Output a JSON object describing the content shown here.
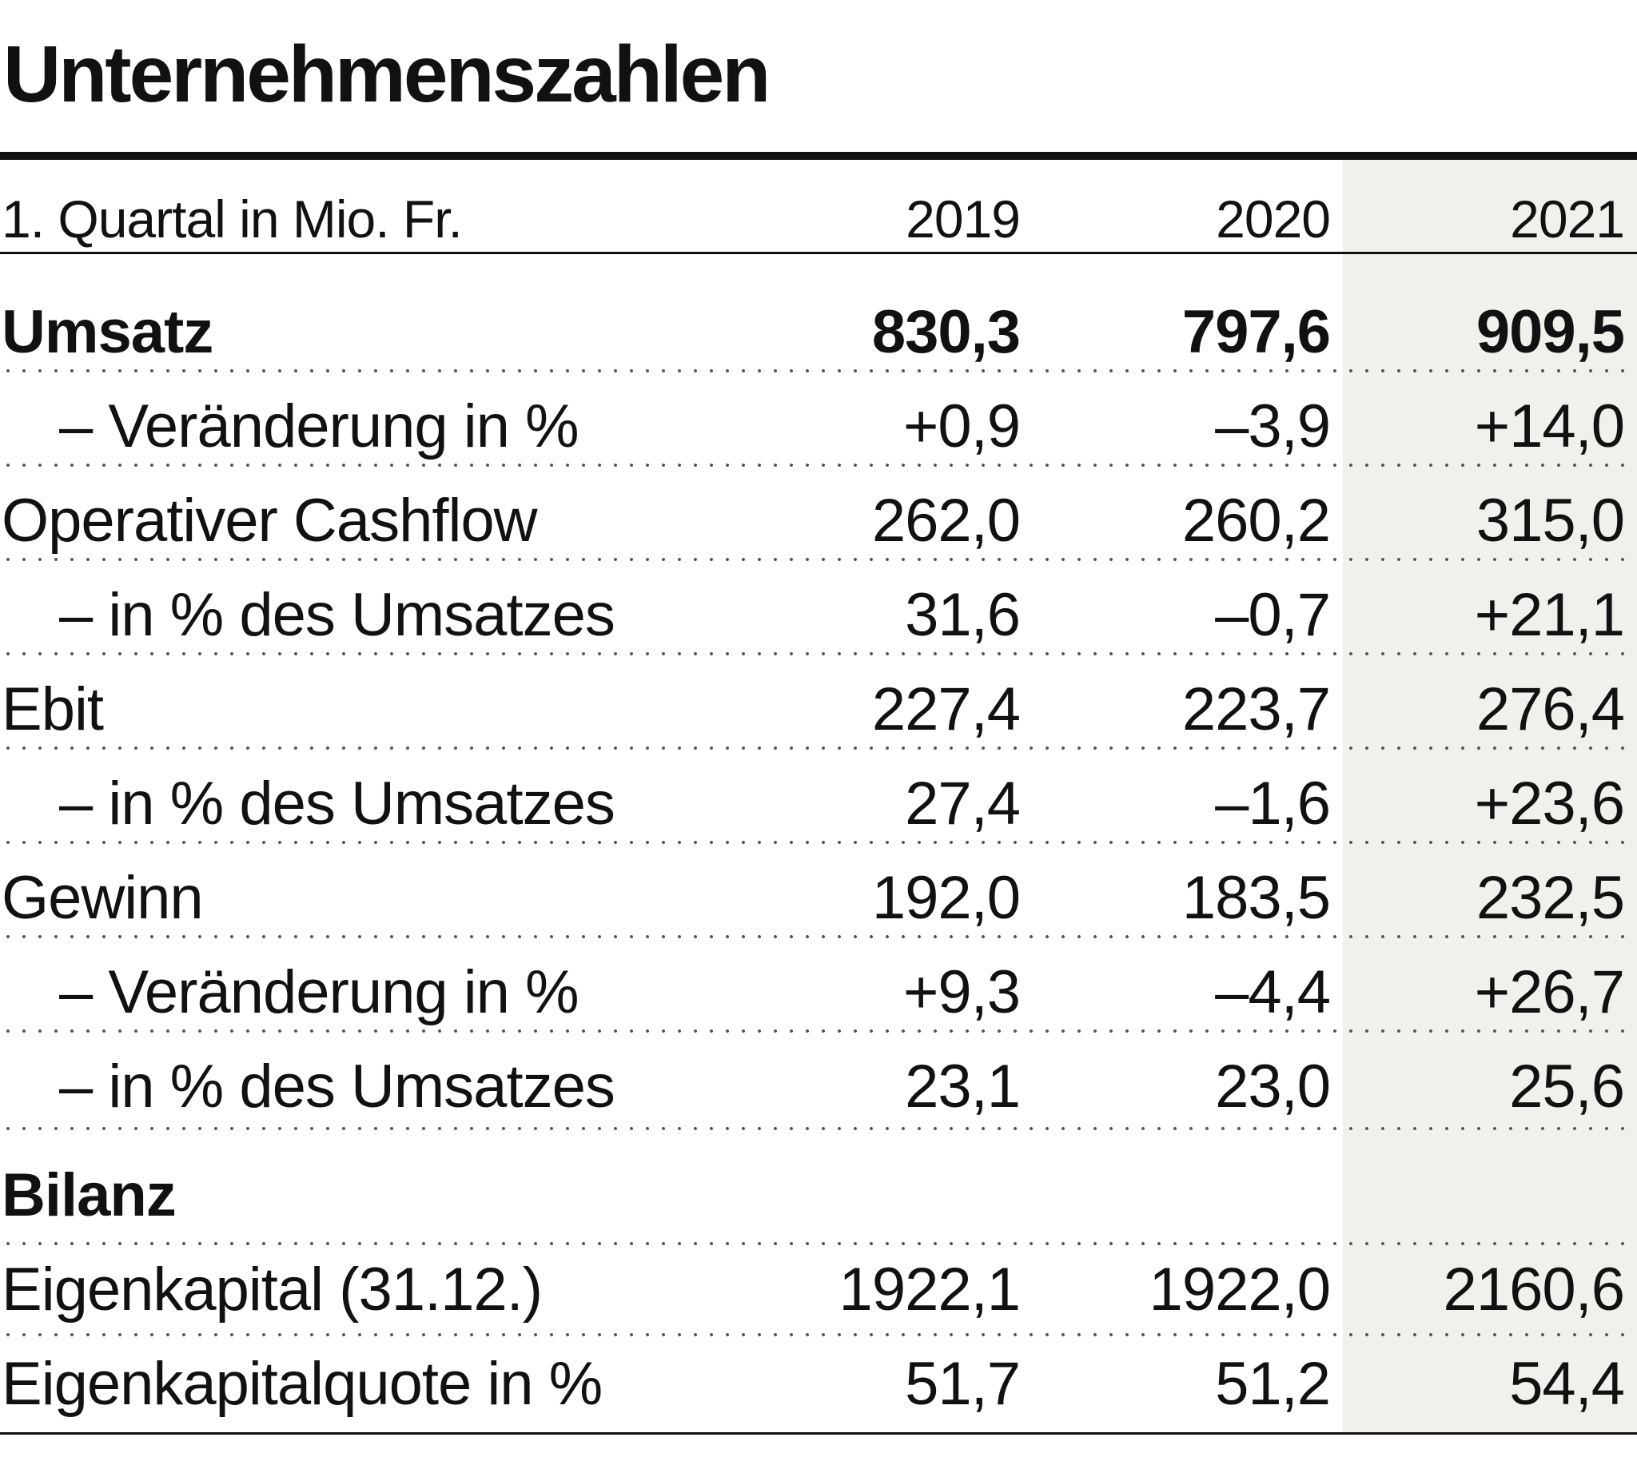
{
  "title": "Unternehmenszahlen",
  "chart_data": {
    "type": "table",
    "title": "Unternehmenszahlen",
    "header": {
      "label": "1. Quartal in Mio. Fr.",
      "years": [
        "2019",
        "2020",
        "2021"
      ]
    },
    "highlighted_column": "2021",
    "rows": [
      {
        "label": "Umsatz",
        "bold": true,
        "indent": false,
        "values": [
          "830,3",
          "797,6",
          "909,5"
        ]
      },
      {
        "label": "– Veränderung in %",
        "bold": false,
        "indent": true,
        "values": [
          "+0,9",
          "–3,9",
          "+14,0"
        ]
      },
      {
        "label": "Operativer Cashflow",
        "bold": false,
        "indent": false,
        "values": [
          "262,0",
          "260,2",
          "315,0"
        ]
      },
      {
        "label": "– in % des Umsatzes",
        "bold": false,
        "indent": true,
        "values": [
          "31,6",
          "–0,7",
          "+21,1"
        ]
      },
      {
        "label": "Ebit",
        "bold": false,
        "indent": false,
        "values": [
          "227,4",
          "223,7",
          "276,4"
        ]
      },
      {
        "label": "– in % des Umsatzes",
        "bold": false,
        "indent": true,
        "values": [
          "27,4",
          "–1,6",
          "+23,6"
        ]
      },
      {
        "label": "Gewinn",
        "bold": false,
        "indent": false,
        "values": [
          "192,0",
          "183,5",
          "232,5"
        ]
      },
      {
        "label": "– Veränderung in %",
        "bold": false,
        "indent": true,
        "values": [
          "+9,3",
          "–4,4",
          "+26,7"
        ]
      },
      {
        "label": "– in % des Umsatzes",
        "bold": false,
        "indent": true,
        "values": [
          "23,1",
          "23,0",
          "25,6"
        ]
      },
      {
        "label": "Bilanz",
        "bold": true,
        "indent": false,
        "values": [
          "",
          "",
          ""
        ]
      },
      {
        "label": "Eigenkapital (31.12.)",
        "bold": false,
        "indent": false,
        "values": [
          "1922,1",
          "1922,0",
          "2160,6"
        ]
      },
      {
        "label": "Eigenkapitalquote in %",
        "bold": false,
        "indent": false,
        "values": [
          "51,7",
          "51,2",
          "54,4"
        ]
      }
    ]
  }
}
